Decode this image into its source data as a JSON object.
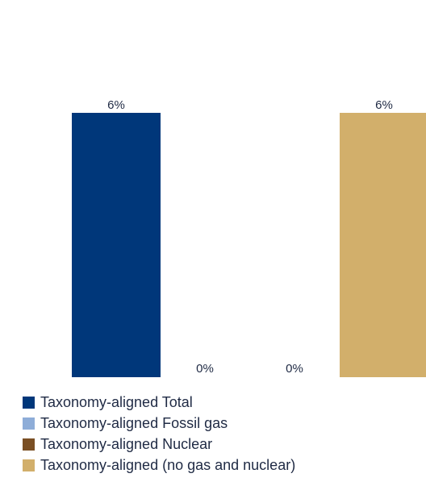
{
  "chart_data": {
    "type": "bar",
    "title": "",
    "xlabel": "",
    "ylabel": "",
    "ylim": [
      0,
      6
    ],
    "grid": false,
    "legend_position": "bottom-left",
    "categories": [
      "Taxonomy-aligned Total",
      "Taxonomy-aligned Fossil gas",
      "Taxonomy-aligned Nuclear",
      "Taxonomy-aligned (no gas and nuclear)"
    ],
    "values": [
      6,
      0,
      0,
      6
    ],
    "data_labels": [
      "6%",
      "0%",
      "0%",
      "6%"
    ],
    "colors": [
      "#00377a",
      "#8eadd8",
      "#7a4f24",
      "#d2af6b"
    ]
  }
}
